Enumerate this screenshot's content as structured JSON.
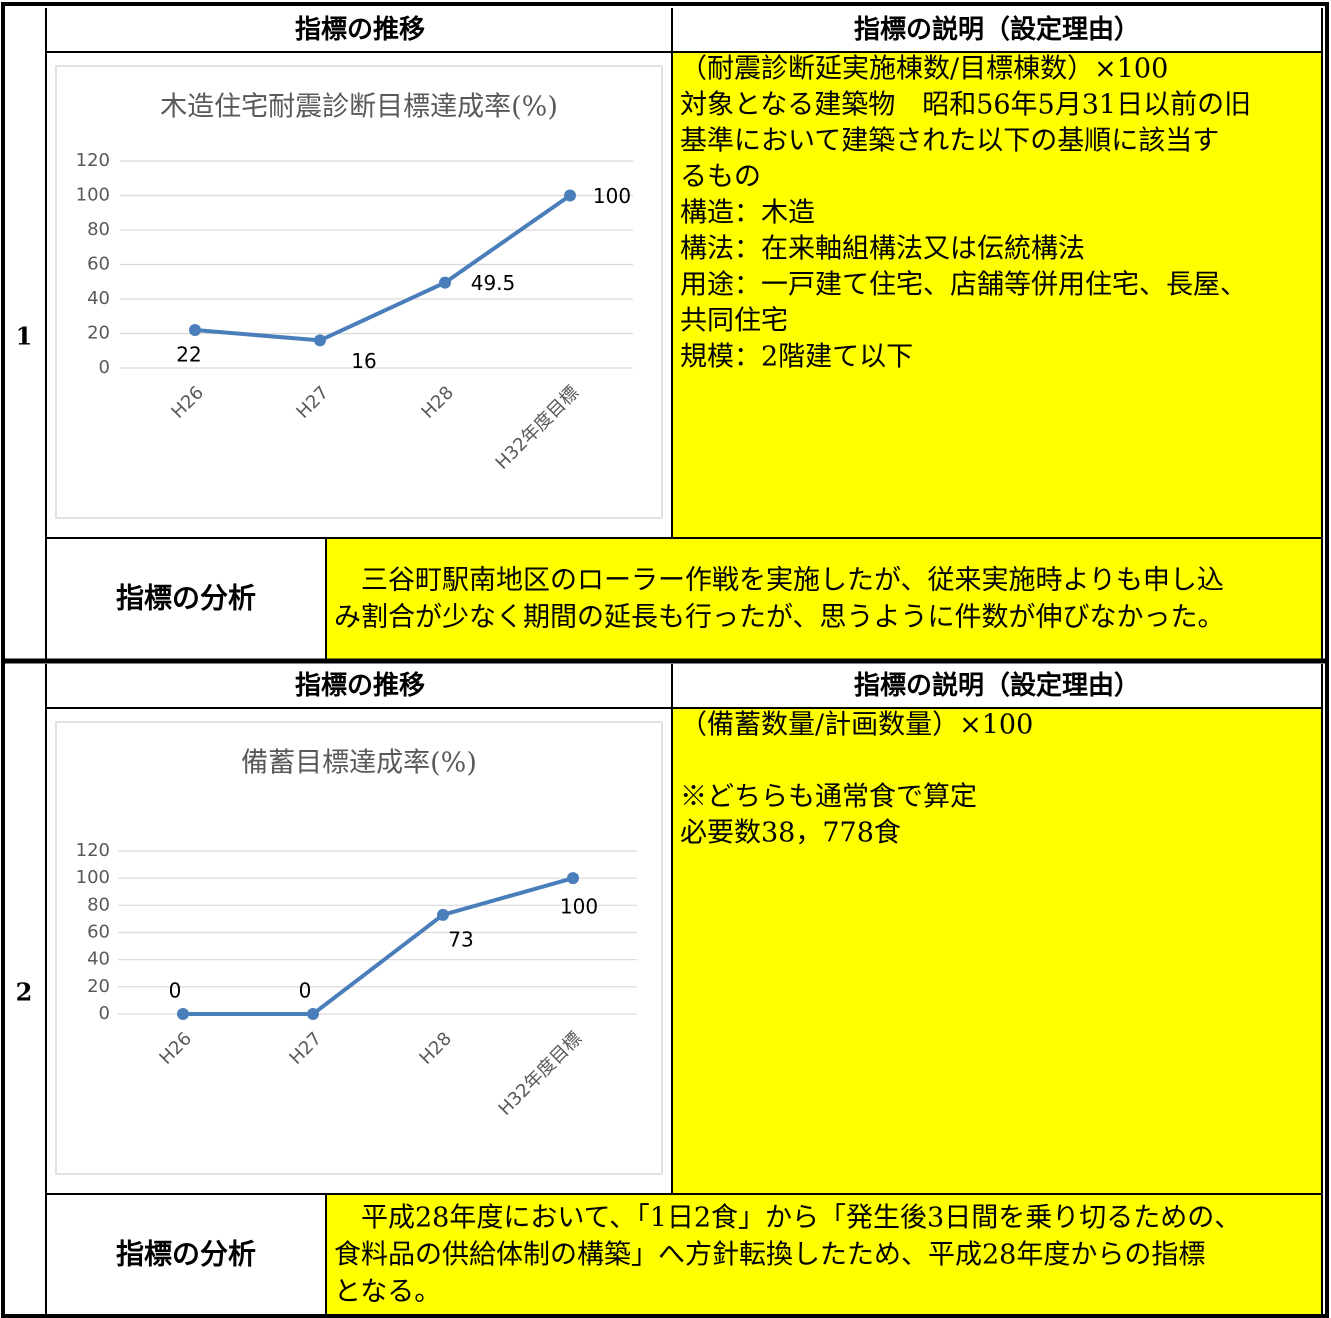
{
  "sections": [
    {
      "number": "1",
      "header_left": "指標の推移",
      "header_right": "指標の説明（設定理由）",
      "chart": {
        "type": "line",
        "title": "木造住宅耐震診断目標達成率(%)",
        "categories": [
          "H26",
          "H27",
          "H28",
          "H32年度目標"
        ],
        "values": [
          22,
          16,
          49.5,
          100
        ],
        "color": "#4a7ebb",
        "ylim": [
          0,
          120
        ],
        "yticks": [
          0,
          20,
          40,
          60,
          80,
          100,
          120
        ],
        "grid": true
      },
      "description": [
        [
          "（耐震診断延実施棟数/目標棟数）×100",
          "対象となる建築物　昭和56年5月31日以前の旧",
          "基準において建築された以下の基順に該当す",
          "るもの",
          "構造：木造",
          "構法：在来軸組構法又は伝統構法",
          "用途：一戸建て住宅、店舗等併用住宅、長屋、",
          "共同住宅",
          "規模：2階建て以下"
        ]
      ],
      "analysis_label": "指標の分析",
      "analysis_text": [
        "　三谷町駅南地区のローラー作戦を実施したが、従来実施時よりも申し込",
        "み割合が少なく期間の延長も行ったが、思うように件数が伸びなかった。"
      ]
    },
    {
      "number": "2",
      "header_left": "指標の推移",
      "header_right": "指標の説明（設定理由）",
      "chart": {
        "type": "line",
        "title": "備蓄目標達成率(%)",
        "categories": [
          "H26",
          "H27",
          "H28",
          "H32年度目標"
        ],
        "values": [
          0,
          0,
          73,
          100
        ],
        "color": "#4a7ebb",
        "ylim": [
          0,
          120
        ],
        "yticks": [
          0,
          20,
          40,
          60,
          80,
          100,
          120
        ],
        "grid": true
      },
      "description": [
        [
          "（備蓄数量/計画数量）×100"
        ],
        [
          "※どちらも通常食で算定",
          "必要数38，778食"
        ]
      ],
      "analysis_label": "指標の分析",
      "analysis_text": [
        "　平成28年度において、「1日2食」から「発生後3日間を乗り切るための、",
        "食料品の供給体制の構築」へ方針転換したため、平成28年度からの指標",
        "となる。"
      ]
    }
  ]
}
